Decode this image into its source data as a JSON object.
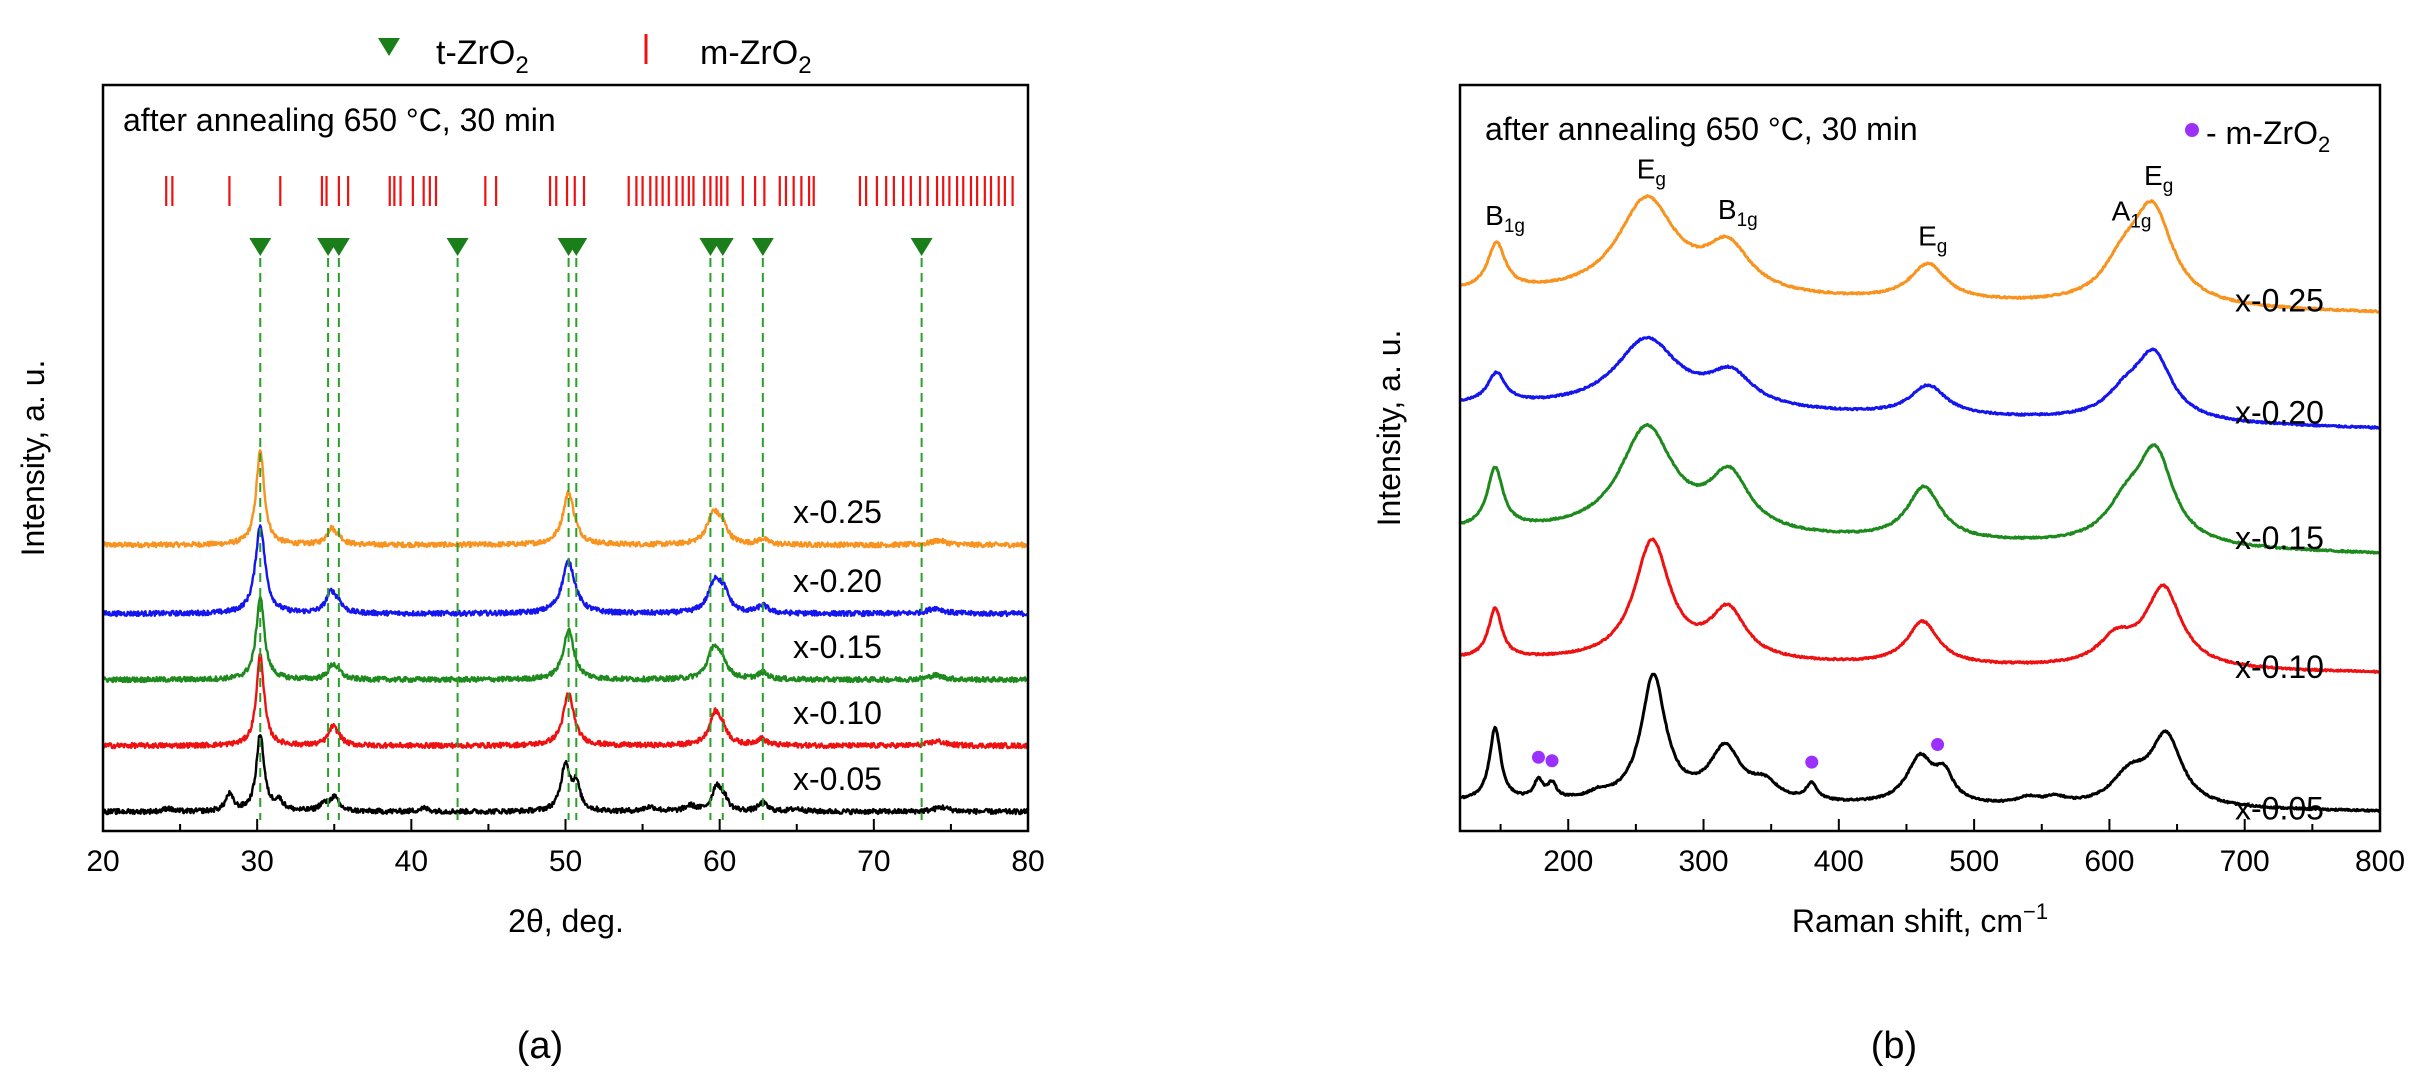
{
  "figure": {
    "panel_a_label": "(a)",
    "panel_b_label": "(b)",
    "legend_t": "t-ZrO",
    "legend_m": "m-ZrO",
    "legend_sub": "2",
    "colors": {
      "orange": "#f7931e",
      "blue": "#1515ee",
      "green": "#1e8a1e",
      "red": "#ee1111",
      "black": "#000000",
      "dashed": "#2aa02a",
      "tick_red": "#ee1111",
      "marker": "#1a7f1a",
      "dot": "#9b30ff"
    }
  },
  "chart_data": [
    {
      "id": "xrd",
      "type": "line",
      "title": "after annealing 650 °C, 30 min",
      "xlabel": "2θ, deg.",
      "ylabel": "Intensity, a. u.",
      "xlim": [
        20,
        80
      ],
      "xticks": [
        20,
        30,
        40,
        50,
        60,
        70,
        80
      ],
      "ylim": [
        0,
        10
      ],
      "yticks_shown": false,
      "legend": [
        "t-ZrO2",
        "m-ZrO2"
      ],
      "t_ZrO2_positions": [
        30.2,
        34.6,
        35.3,
        43.0,
        50.2,
        50.7,
        59.4,
        60.2,
        62.8,
        73.1
      ],
      "m_ZrO2_ticks": [
        24.1,
        24.5,
        28.2,
        31.5,
        34.2,
        34.5,
        35.3,
        35.9,
        38.6,
        38.9,
        39.3,
        40.1,
        40.8,
        41.2,
        41.6,
        44.8,
        45.5,
        49.0,
        49.4,
        50.1,
        50.6,
        51.2,
        54.1,
        54.6,
        55.0,
        55.5,
        55.9,
        56.3,
        56.7,
        57.2,
        57.6,
        58.0,
        58.3,
        59.0,
        59.4,
        59.8,
        60.1,
        60.5,
        61.5,
        62.3,
        62.9,
        63.9,
        64.3,
        64.8,
        65.3,
        65.8,
        66.1,
        69.1,
        69.5,
        70.2,
        70.8,
        71.3,
        71.9,
        72.4,
        73.0,
        73.5,
        74.1,
        74.5,
        74.9,
        75.4,
        75.8,
        76.3,
        76.7,
        77.2,
        77.6,
        78.1,
        78.5,
        79.0
      ],
      "series": [
        {
          "name": "x-0.25",
          "color": "orange",
          "baseline": 5.0,
          "peaks": [
            [
              30.2,
              1.7,
              0.32
            ],
            [
              34.8,
              0.28,
              0.35
            ],
            [
              35.3,
              0.1,
              0.3
            ],
            [
              50.2,
              0.95,
              0.45
            ],
            [
              59.6,
              0.55,
              0.5
            ],
            [
              60.2,
              0.25,
              0.4
            ],
            [
              62.8,
              0.1,
              0.4
            ],
            [
              74.2,
              0.08,
              0.6
            ]
          ]
        },
        {
          "name": "x-0.20",
          "color": "blue",
          "baseline": 3.75,
          "peaks": [
            [
              30.2,
              1.6,
              0.38
            ],
            [
              34.8,
              0.38,
              0.4
            ],
            [
              35.3,
              0.12,
              0.3
            ],
            [
              50.2,
              0.95,
              0.5
            ],
            [
              59.7,
              0.58,
              0.5
            ],
            [
              60.3,
              0.28,
              0.4
            ],
            [
              62.8,
              0.14,
              0.4
            ],
            [
              74.0,
              0.1,
              0.6
            ]
          ]
        },
        {
          "name": "x-0.15",
          "color": "green",
          "baseline": 2.55,
          "peaks": [
            [
              30.2,
              1.5,
              0.32
            ],
            [
              34.9,
              0.25,
              0.35
            ],
            [
              35.3,
              0.08,
              0.3
            ],
            [
              50.2,
              0.9,
              0.42
            ],
            [
              59.6,
              0.55,
              0.45
            ],
            [
              60.2,
              0.25,
              0.4
            ],
            [
              62.8,
              0.12,
              0.4
            ],
            [
              74.0,
              0.08,
              0.6
            ]
          ]
        },
        {
          "name": "x-0.10",
          "color": "red",
          "baseline": 1.35,
          "peaks": [
            [
              30.2,
              1.65,
              0.3
            ],
            [
              34.9,
              0.32,
              0.35
            ],
            [
              35.3,
              0.08,
              0.3
            ],
            [
              50.2,
              0.95,
              0.42
            ],
            [
              59.7,
              0.55,
              0.45
            ],
            [
              60.2,
              0.2,
              0.4
            ],
            [
              62.7,
              0.12,
              0.4
            ],
            [
              74.1,
              0.08,
              0.6
            ]
          ]
        },
        {
          "name": "x-0.05",
          "color": "black",
          "baseline": 0.15,
          "peaks": [
            [
              24.2,
              0.06,
              0.3
            ],
            [
              28.2,
              0.3,
              0.3
            ],
            [
              30.2,
              1.4,
              0.3
            ],
            [
              31.4,
              0.18,
              0.35
            ],
            [
              34.3,
              0.12,
              0.35
            ],
            [
              35.0,
              0.25,
              0.35
            ],
            [
              40.8,
              0.06,
              0.4
            ],
            [
              50.0,
              0.85,
              0.35
            ],
            [
              50.7,
              0.45,
              0.3
            ],
            [
              55.5,
              0.08,
              0.5
            ],
            [
              58.1,
              0.1,
              0.4
            ],
            [
              59.8,
              0.45,
              0.35
            ],
            [
              60.3,
              0.2,
              0.3
            ],
            [
              62.8,
              0.15,
              0.35
            ],
            [
              65.0,
              0.05,
              0.5
            ],
            [
              74.4,
              0.08,
              0.6
            ]
          ]
        }
      ]
    },
    {
      "id": "raman",
      "type": "line",
      "title": "after annealing 650 °C, 30 min",
      "xlabel": "Raman shift, cm",
      "xlabel_sup": "−1",
      "ylabel": "Intensity, a. u.",
      "xlim": [
        120,
        800
      ],
      "xticks": [
        200,
        300,
        400,
        500,
        600,
        700,
        800
      ],
      "ylim": [
        0,
        10
      ],
      "yticks_shown": false,
      "legend": [
        "- m-ZrO2"
      ],
      "legend_text": "- m-ZrO",
      "mode_labels": [
        {
          "main": "B",
          "sub": "1g",
          "x": 146,
          "series": 0
        },
        {
          "main": "E",
          "sub": "g",
          "x": 258,
          "series": 0
        },
        {
          "main": "B",
          "sub": "1g",
          "x": 318,
          "series": 0
        },
        {
          "main": "E",
          "sub": "g",
          "x": 466,
          "series": 0
        },
        {
          "main": "A",
          "sub": "1g",
          "x": 609,
          "series": 0
        },
        {
          "main": "E",
          "sub": "g",
          "x": 633,
          "series": 0
        }
      ],
      "m_ZrO2_dots": [
        178,
        188,
        380,
        473
      ],
      "series": [
        {
          "name": "x-0.25",
          "color": "orange",
          "baseline": 8.25,
          "tail": -0.3,
          "peaks": [
            [
              147,
              0.7,
              8
            ],
            [
              258,
              1.45,
              26
            ],
            [
              318,
              0.7,
              20
            ],
            [
              466,
              0.55,
              16
            ],
            [
              610,
              0.5,
              18
            ],
            [
              632,
              1.4,
              18
            ]
          ]
        },
        {
          "name": "x-0.20",
          "color": "blue",
          "baseline": 6.55,
          "tail": -0.35,
          "peaks": [
            [
              147,
              0.45,
              8
            ],
            [
              258,
              1.05,
              28
            ],
            [
              320,
              0.5,
              20
            ],
            [
              466,
              0.45,
              16
            ],
            [
              612,
              0.35,
              18
            ],
            [
              633,
              0.95,
              16
            ]
          ]
        },
        {
          "name": "x-0.15",
          "color": "green",
          "baseline": 4.65,
          "tail": -0.35,
          "peaks": [
            [
              146,
              0.9,
              7
            ],
            [
              258,
              1.6,
              24
            ],
            [
              319,
              0.85,
              18
            ],
            [
              463,
              0.8,
              15
            ],
            [
              612,
              0.5,
              18
            ],
            [
              634,
              1.35,
              16
            ]
          ]
        },
        {
          "name": "x-0.10",
          "color": "red",
          "baseline": 2.7,
          "tail": -0.2,
          "peaks": [
            [
              146,
              0.75,
              6
            ],
            [
              262,
              1.8,
              16
            ],
            [
              318,
              0.75,
              16
            ],
            [
              462,
              0.65,
              14
            ],
            [
              605,
              0.4,
              16
            ],
            [
              640,
              1.2,
              16
            ]
          ]
        },
        {
          "name": "x-0.05",
          "color": "black",
          "baseline": 0.55,
          "tail": -0.15,
          "peaks": [
            [
              146,
              1.1,
              5
            ],
            [
              178,
              0.28,
              4
            ],
            [
              188,
              0.22,
              4
            ],
            [
              222,
              0.08,
              8
            ],
            [
              263,
              1.9,
              11
            ],
            [
              316,
              0.8,
              14
            ],
            [
              345,
              0.25,
              12
            ],
            [
              380,
              0.25,
              5
            ],
            [
              460,
              0.7,
              12
            ],
            [
              478,
              0.4,
              8
            ],
            [
              540,
              0.1,
              10
            ],
            [
              560,
              0.1,
              10
            ],
            [
              615,
              0.45,
              16
            ],
            [
              642,
              1.05,
              14
            ]
          ]
        }
      ]
    }
  ]
}
